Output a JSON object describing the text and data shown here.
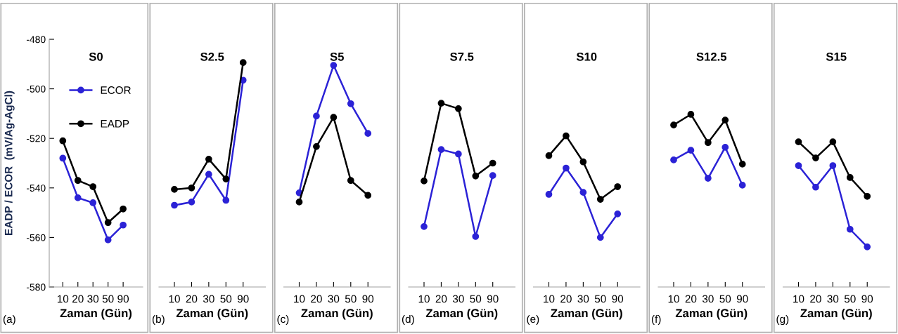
{
  "chart_data": [
    {
      "type": "line",
      "title": "S0",
      "xlabel": "Zaman (Gün)",
      "ylabel": "EADP / ECOR  (mV/Ag-AgCl)",
      "annotations": [
        "(a)"
      ],
      "categories": [
        "10",
        "20",
        "30",
        "50",
        "90"
      ],
      "ylim": [
        -580,
        -480
      ],
      "yticks": [
        -580,
        -560,
        -540,
        -520,
        -500,
        -480
      ],
      "marker": "circle",
      "legend": "top",
      "grid": false,
      "series": [
        {
          "name": "ECOR",
          "color": "#2b22d6",
          "values": [
            -528,
            -544,
            -546,
            -561,
            -555
          ]
        },
        {
          "name": "EADP",
          "color": "#000000",
          "values": [
            -521,
            -537,
            -539.5,
            -554,
            -548.5
          ]
        }
      ]
    },
    {
      "type": "line",
      "title": "S2.5",
      "xlabel": "Zaman (Gün)",
      "annotations": [
        "(b)"
      ],
      "categories": [
        "10",
        "20",
        "30",
        "50",
        "90"
      ],
      "ylim": [
        -580,
        -480
      ],
      "tick_labels": "x",
      "marker": "circle",
      "grid": false,
      "series": [
        {
          "color": "#2b22d6",
          "values": [
            -547,
            -545.7,
            -534.5,
            -545,
            -496.5
          ]
        },
        {
          "color": "#000000",
          "values": [
            -540.6,
            -540,
            -528.4,
            -536.4,
            -489.4
          ]
        }
      ]
    },
    {
      "type": "line",
      "title": "S5",
      "xlabel": "Zaman (Gün)",
      "annotations": [
        "(c)"
      ],
      "categories": [
        "10",
        "20",
        "30",
        "50",
        "90"
      ],
      "ylim": [
        -580,
        -480
      ],
      "tick_labels": "x",
      "marker": "circle",
      "grid": false,
      "series": [
        {
          "color": "#2b22d6",
          "values": [
            -542,
            -511,
            -490.5,
            -506,
            -518
          ]
        },
        {
          "color": "#000000",
          "values": [
            -545.7,
            -523.3,
            -511.5,
            -537,
            -543
          ]
        }
      ]
    },
    {
      "type": "line",
      "title": "S7.5",
      "xlabel": "Zaman (Gün)",
      "annotations": [
        "(d)"
      ],
      "categories": [
        "10",
        "20",
        "30",
        "50",
        "90"
      ],
      "ylim": [
        -580,
        -480
      ],
      "tick_labels": "x",
      "marker": "circle",
      "grid": false,
      "series": [
        {
          "color": "#2b22d6",
          "values": [
            -555.6,
            -524.5,
            -526.3,
            -559.6,
            -535
          ]
        },
        {
          "color": "#000000",
          "values": [
            -537.2,
            -505.8,
            -508,
            -535.2,
            -530
          ]
        }
      ]
    },
    {
      "type": "line",
      "title": "S10",
      "xlabel": "Zaman (Gün)",
      "annotations": [
        "(e)"
      ],
      "categories": [
        "10",
        "20",
        "30",
        "50",
        "90"
      ],
      "ylim": [
        -580,
        -480
      ],
      "tick_labels": "x",
      "marker": "circle",
      "grid": false,
      "series": [
        {
          "color": "#2b22d6",
          "values": [
            -542.6,
            -532,
            -541.8,
            -560,
            -550.5
          ]
        },
        {
          "color": "#000000",
          "values": [
            -527,
            -519,
            -529.5,
            -544.6,
            -539.5
          ]
        }
      ]
    },
    {
      "type": "line",
      "title": "S12.5",
      "xlabel": "Zaman (Gün)",
      "annotations": [
        "(f)"
      ],
      "categories": [
        "10",
        "20",
        "30",
        "50",
        "90"
      ],
      "ylim": [
        -580,
        -480
      ],
      "tick_labels": "x",
      "marker": "circle",
      "grid": false,
      "series": [
        {
          "color": "#2b22d6",
          "values": [
            -528.7,
            -524.8,
            -536.1,
            -523.6,
            -538.9
          ]
        },
        {
          "color": "#000000",
          "values": [
            -514.6,
            -510.3,
            -521.7,
            -512.6,
            -530.4
          ]
        }
      ]
    },
    {
      "type": "line",
      "title": "S15",
      "xlabel": "Zaman (Gün)",
      "annotations": [
        "(g)"
      ],
      "categories": [
        "10",
        "20",
        "30",
        "50",
        "90"
      ],
      "ylim": [
        -580,
        -480
      ],
      "tick_labels": "x",
      "marker": "circle",
      "grid": false,
      "series": [
        {
          "color": "#2b22d6",
          "values": [
            -531,
            -539.7,
            -531,
            -556.7,
            -563.8
          ]
        },
        {
          "color": "#000000",
          "values": [
            -521.4,
            -527.9,
            -521.4,
            -535.8,
            -543.4
          ]
        }
      ]
    }
  ]
}
